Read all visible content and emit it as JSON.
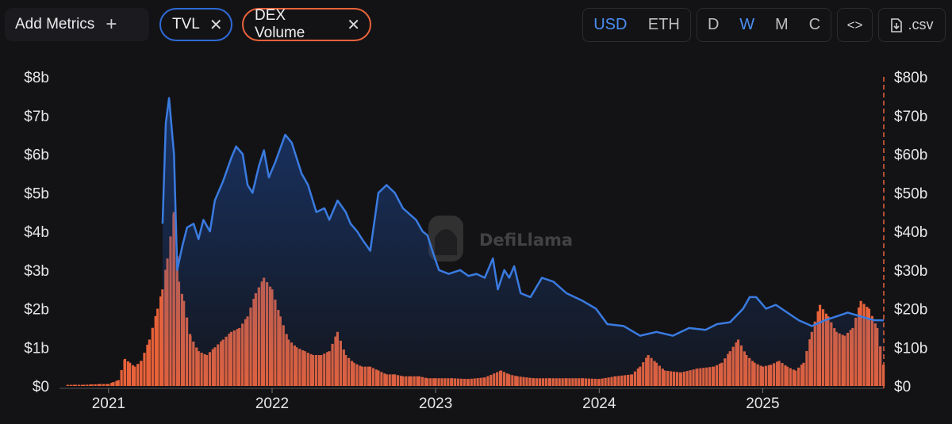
{
  "toolbar": {
    "add_metrics_label": "Add Metrics",
    "metric_pills": [
      {
        "label": "TVL",
        "color": "#2e6bd6"
      },
      {
        "label": "DEX Volume",
        "color": "#e8623a"
      }
    ],
    "currency_options": [
      "USD",
      "ETH"
    ],
    "currency_selected": "USD",
    "interval_options": [
      "D",
      "W",
      "M",
      "C"
    ],
    "interval_selected": "W",
    "embed_label": "<>",
    "csv_label": ".csv"
  },
  "watermark": "DefiLlama",
  "chart_data": {
    "type": "line+bar",
    "x_ticks": [
      "2021",
      "2022",
      "2023",
      "2024",
      "2025"
    ],
    "x_range": [
      2020.7,
      2025.74
    ],
    "y_left": {
      "label": "TVL",
      "ticks": [
        "$0",
        "$1b",
        "$2b",
        "$3b",
        "$4b",
        "$5b",
        "$6b",
        "$7b",
        "$8b"
      ],
      "range": [
        0,
        8
      ],
      "unit": "billions USD"
    },
    "y_right": {
      "label": "DEX Volume",
      "ticks": [
        "$0",
        "$10b",
        "$20b",
        "$30b",
        "$40b",
        "$50b",
        "$60b",
        "$70b",
        "$80b"
      ],
      "range": [
        0,
        80
      ],
      "unit": "billions USD"
    },
    "series": [
      {
        "name": "TVL",
        "type": "line",
        "axis": "left",
        "color": "#3a7be0",
        "points": [
          [
            2021.33,
            4.2
          ],
          [
            2021.35,
            6.8
          ],
          [
            2021.37,
            7.45
          ],
          [
            2021.4,
            6.0
          ],
          [
            2021.42,
            3.0
          ],
          [
            2021.45,
            3.6
          ],
          [
            2021.48,
            4.1
          ],
          [
            2021.52,
            4.2
          ],
          [
            2021.55,
            3.8
          ],
          [
            2021.58,
            4.3
          ],
          [
            2021.62,
            4.0
          ],
          [
            2021.65,
            4.8
          ],
          [
            2021.7,
            5.3
          ],
          [
            2021.75,
            5.9
          ],
          [
            2021.78,
            6.2
          ],
          [
            2021.82,
            6.0
          ],
          [
            2021.85,
            5.2
          ],
          [
            2021.88,
            5.0
          ],
          [
            2021.92,
            5.7
          ],
          [
            2021.95,
            6.1
          ],
          [
            2021.98,
            5.4
          ],
          [
            2022.02,
            5.8
          ],
          [
            2022.08,
            6.5
          ],
          [
            2022.12,
            6.3
          ],
          [
            2022.18,
            5.5
          ],
          [
            2022.22,
            5.2
          ],
          [
            2022.27,
            4.5
          ],
          [
            2022.32,
            4.6
          ],
          [
            2022.35,
            4.3
          ],
          [
            2022.4,
            4.8
          ],
          [
            2022.45,
            4.5
          ],
          [
            2022.48,
            4.2
          ],
          [
            2022.52,
            4.0
          ],
          [
            2022.55,
            3.8
          ],
          [
            2022.6,
            3.5
          ],
          [
            2022.65,
            5.0
          ],
          [
            2022.7,
            5.2
          ],
          [
            2022.75,
            5.0
          ],
          [
            2022.8,
            4.6
          ],
          [
            2022.88,
            4.3
          ],
          [
            2022.92,
            4.0
          ],
          [
            2022.95,
            3.9
          ],
          [
            2022.98,
            3.5
          ],
          [
            2023.02,
            3.0
          ],
          [
            2023.08,
            2.9
          ],
          [
            2023.15,
            3.0
          ],
          [
            2023.2,
            2.85
          ],
          [
            2023.25,
            2.9
          ],
          [
            2023.3,
            2.8
          ],
          [
            2023.35,
            3.3
          ],
          [
            2023.38,
            2.5
          ],
          [
            2023.42,
            3.0
          ],
          [
            2023.45,
            2.8
          ],
          [
            2023.48,
            3.1
          ],
          [
            2023.52,
            2.4
          ],
          [
            2023.58,
            2.3
          ],
          [
            2023.65,
            2.8
          ],
          [
            2023.72,
            2.7
          ],
          [
            2023.8,
            2.4
          ],
          [
            2023.9,
            2.2
          ],
          [
            2023.98,
            2.0
          ],
          [
            2024.05,
            1.6
          ],
          [
            2024.15,
            1.55
          ],
          [
            2024.25,
            1.3
          ],
          [
            2024.35,
            1.4
          ],
          [
            2024.45,
            1.3
          ],
          [
            2024.55,
            1.5
          ],
          [
            2024.65,
            1.45
          ],
          [
            2024.72,
            1.6
          ],
          [
            2024.8,
            1.65
          ],
          [
            2024.88,
            2.0
          ],
          [
            2024.92,
            2.3
          ],
          [
            2024.96,
            2.3
          ],
          [
            2025.02,
            2.0
          ],
          [
            2025.08,
            2.1
          ],
          [
            2025.15,
            1.9
          ],
          [
            2025.22,
            1.7
          ],
          [
            2025.3,
            1.55
          ],
          [
            2025.38,
            1.7
          ],
          [
            2025.45,
            1.8
          ],
          [
            2025.52,
            1.9
          ],
          [
            2025.6,
            1.8
          ],
          [
            2025.68,
            1.7
          ],
          [
            2025.74,
            1.7
          ]
        ]
      },
      {
        "name": "DEX Volume",
        "type": "bar",
        "axis": "right",
        "color": "#e8623a",
        "points": [
          [
            2020.75,
            0.3
          ],
          [
            2020.8,
            0.3
          ],
          [
            2020.85,
            0.3
          ],
          [
            2020.9,
            0.4
          ],
          [
            2020.95,
            0.5
          ],
          [
            2021.0,
            0.5
          ],
          [
            2021.03,
            1.0
          ],
          [
            2021.06,
            1.5
          ],
          [
            2021.1,
            7.0
          ],
          [
            2021.13,
            6.0
          ],
          [
            2021.16,
            5.0
          ],
          [
            2021.2,
            6.5
          ],
          [
            2021.25,
            12.0
          ],
          [
            2021.3,
            20.0
          ],
          [
            2021.33,
            25.0
          ],
          [
            2021.36,
            33.0
          ],
          [
            2021.4,
            45.0
          ],
          [
            2021.43,
            27.0
          ],
          [
            2021.46,
            22.0
          ],
          [
            2021.5,
            13.0
          ],
          [
            2021.55,
            9.0
          ],
          [
            2021.6,
            8.0
          ],
          [
            2021.65,
            10.0
          ],
          [
            2021.7,
            12.0
          ],
          [
            2021.75,
            14.0
          ],
          [
            2021.8,
            15.0
          ],
          [
            2021.85,
            18.0
          ],
          [
            2021.9,
            24.0
          ],
          [
            2021.95,
            28.0
          ],
          [
            2022.0,
            25.0
          ],
          [
            2022.05,
            18.0
          ],
          [
            2022.1,
            12.0
          ],
          [
            2022.15,
            10.0
          ],
          [
            2022.2,
            9.0
          ],
          [
            2022.25,
            8.0
          ],
          [
            2022.3,
            8.0
          ],
          [
            2022.35,
            9.0
          ],
          [
            2022.4,
            14.0
          ],
          [
            2022.45,
            8.0
          ],
          [
            2022.5,
            6.0
          ],
          [
            2022.55,
            5.0
          ],
          [
            2022.6,
            5.0
          ],
          [
            2022.65,
            4.0
          ],
          [
            2022.7,
            3.0
          ],
          [
            2022.75,
            3.0
          ],
          [
            2022.8,
            2.5
          ],
          [
            2022.85,
            2.5
          ],
          [
            2022.9,
            2.5
          ],
          [
            2022.95,
            2.0
          ],
          [
            2023.0,
            2.0
          ],
          [
            2023.1,
            2.0
          ],
          [
            2023.2,
            1.8
          ],
          [
            2023.3,
            2.2
          ],
          [
            2023.4,
            4.0
          ],
          [
            2023.45,
            3.0
          ],
          [
            2023.5,
            2.5
          ],
          [
            2023.6,
            2.0
          ],
          [
            2023.7,
            2.0
          ],
          [
            2023.8,
            2.0
          ],
          [
            2023.9,
            2.0
          ],
          [
            2024.0,
            1.8
          ],
          [
            2024.1,
            2.5
          ],
          [
            2024.2,
            3.0
          ],
          [
            2024.25,
            5.0
          ],
          [
            2024.3,
            8.0
          ],
          [
            2024.35,
            6.0
          ],
          [
            2024.4,
            4.0
          ],
          [
            2024.5,
            3.5
          ],
          [
            2024.6,
            4.5
          ],
          [
            2024.7,
            5.0
          ],
          [
            2024.75,
            6.0
          ],
          [
            2024.8,
            9.0
          ],
          [
            2024.85,
            12.0
          ],
          [
            2024.9,
            8.0
          ],
          [
            2024.95,
            6.0
          ],
          [
            2025.0,
            5.0
          ],
          [
            2025.05,
            5.5
          ],
          [
            2025.1,
            6.5
          ],
          [
            2025.15,
            5.0
          ],
          [
            2025.2,
            4.0
          ],
          [
            2025.25,
            6.0
          ],
          [
            2025.3,
            14.0
          ],
          [
            2025.35,
            21.0
          ],
          [
            2025.4,
            18.0
          ],
          [
            2025.45,
            14.0
          ],
          [
            2025.5,
            13.0
          ],
          [
            2025.55,
            15.0
          ],
          [
            2025.6,
            22.0
          ],
          [
            2025.65,
            20.0
          ],
          [
            2025.7,
            15.0
          ],
          [
            2025.74,
            5.0
          ]
        ]
      }
    ]
  }
}
